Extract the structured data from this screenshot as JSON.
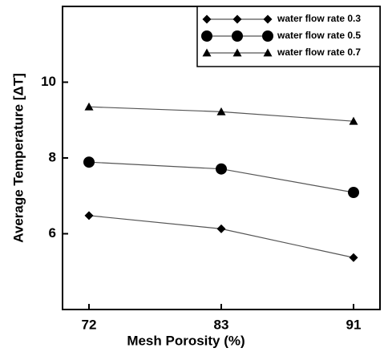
{
  "chart_data": {
    "type": "line",
    "x_label": "Mesh Porosity (%)",
    "y_label": "Average Temperature [ΔT]",
    "categories": [
      "72",
      "83",
      "91"
    ],
    "series": [
      {
        "name": "water flow rate 0.3",
        "color": "#000000",
        "marker": "diamond",
        "values": [
          6.48,
          6.13,
          5.37
        ]
      },
      {
        "name": "water flow rate 0.5",
        "color": "#000000",
        "marker": "circle",
        "values": [
          7.89,
          7.71,
          7.09
        ]
      },
      {
        "name": "water flow rate 0.7",
        "color": "#000000",
        "marker": "triangle",
        "values": [
          9.35,
          9.22,
          8.97
        ]
      }
    ],
    "ylim": [
      4,
      12
    ],
    "yticks": [
      6,
      8,
      10
    ],
    "legend": "upper right",
    "grid": false
  }
}
